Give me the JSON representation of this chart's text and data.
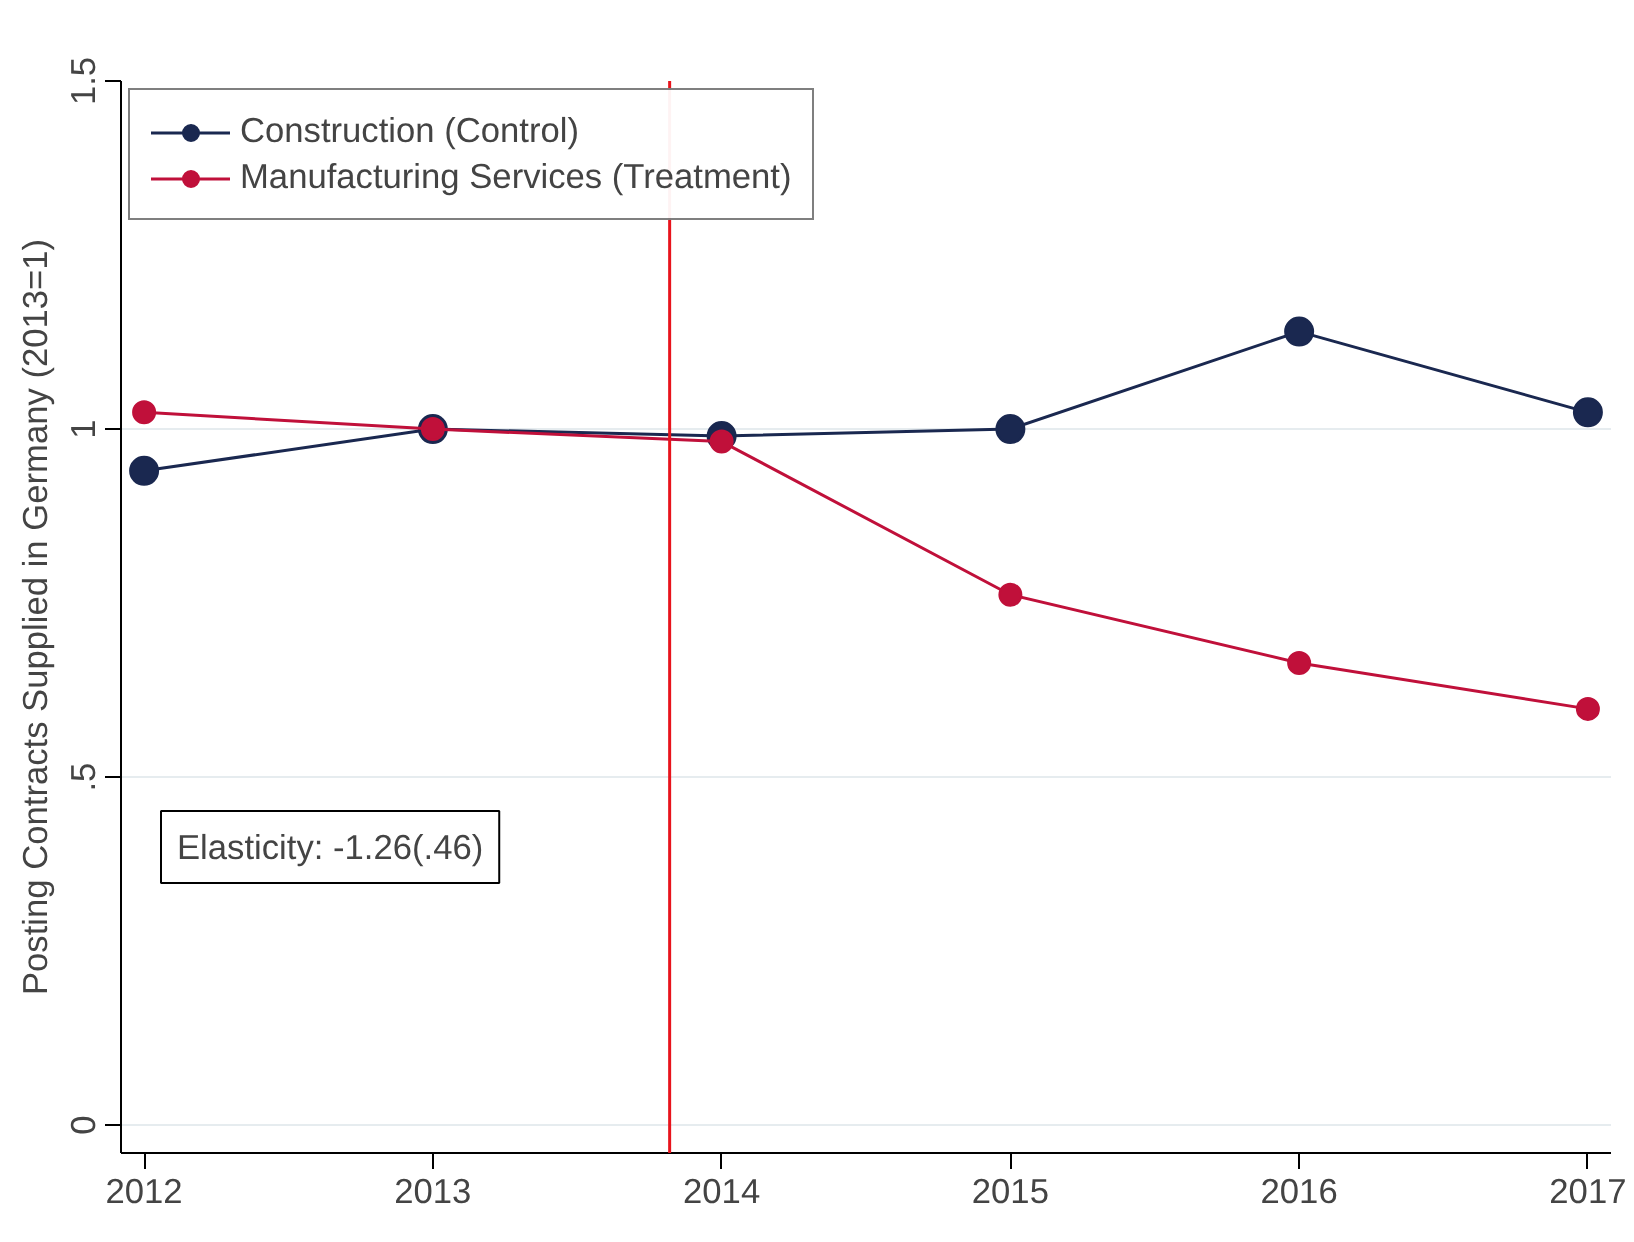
{
  "chart_data": {
    "type": "line",
    "ylabel": "Posting Contracts Supplied in Germany (2013=1)",
    "x": [
      2012,
      2013,
      2014,
      2015,
      2016,
      2017
    ],
    "series": [
      {
        "name": "Construction (Control)",
        "color": "#1a2850",
        "values": [
          0.94,
          1.0,
          0.99,
          1.0,
          1.14,
          1.024
        ]
      },
      {
        "name": "Manufacturing Services (Treatment)",
        "color": "#c0103a",
        "values": [
          1.024,
          1.0,
          0.982,
          0.762,
          0.664,
          0.598
        ]
      }
    ],
    "xlim": [
      2011.92,
      2017.08
    ],
    "xticks": [
      2012,
      2013,
      2014,
      2015,
      2016,
      2017
    ],
    "ylim": [
      -0.04,
      1.5
    ],
    "yticks": [
      0,
      {
        "value": 0.5,
        "label": ".5"
      },
      1,
      1.5
    ],
    "ref_lines": [
      {
        "axis": "x",
        "value": 2013.82,
        "label": null,
        "color": "#e8141c"
      }
    ],
    "annotations": [
      "Elasticity: -1.26(.46)"
    ],
    "grid": "y",
    "legend": "top left",
    "marker": "circle",
    "line_style": "solid"
  }
}
